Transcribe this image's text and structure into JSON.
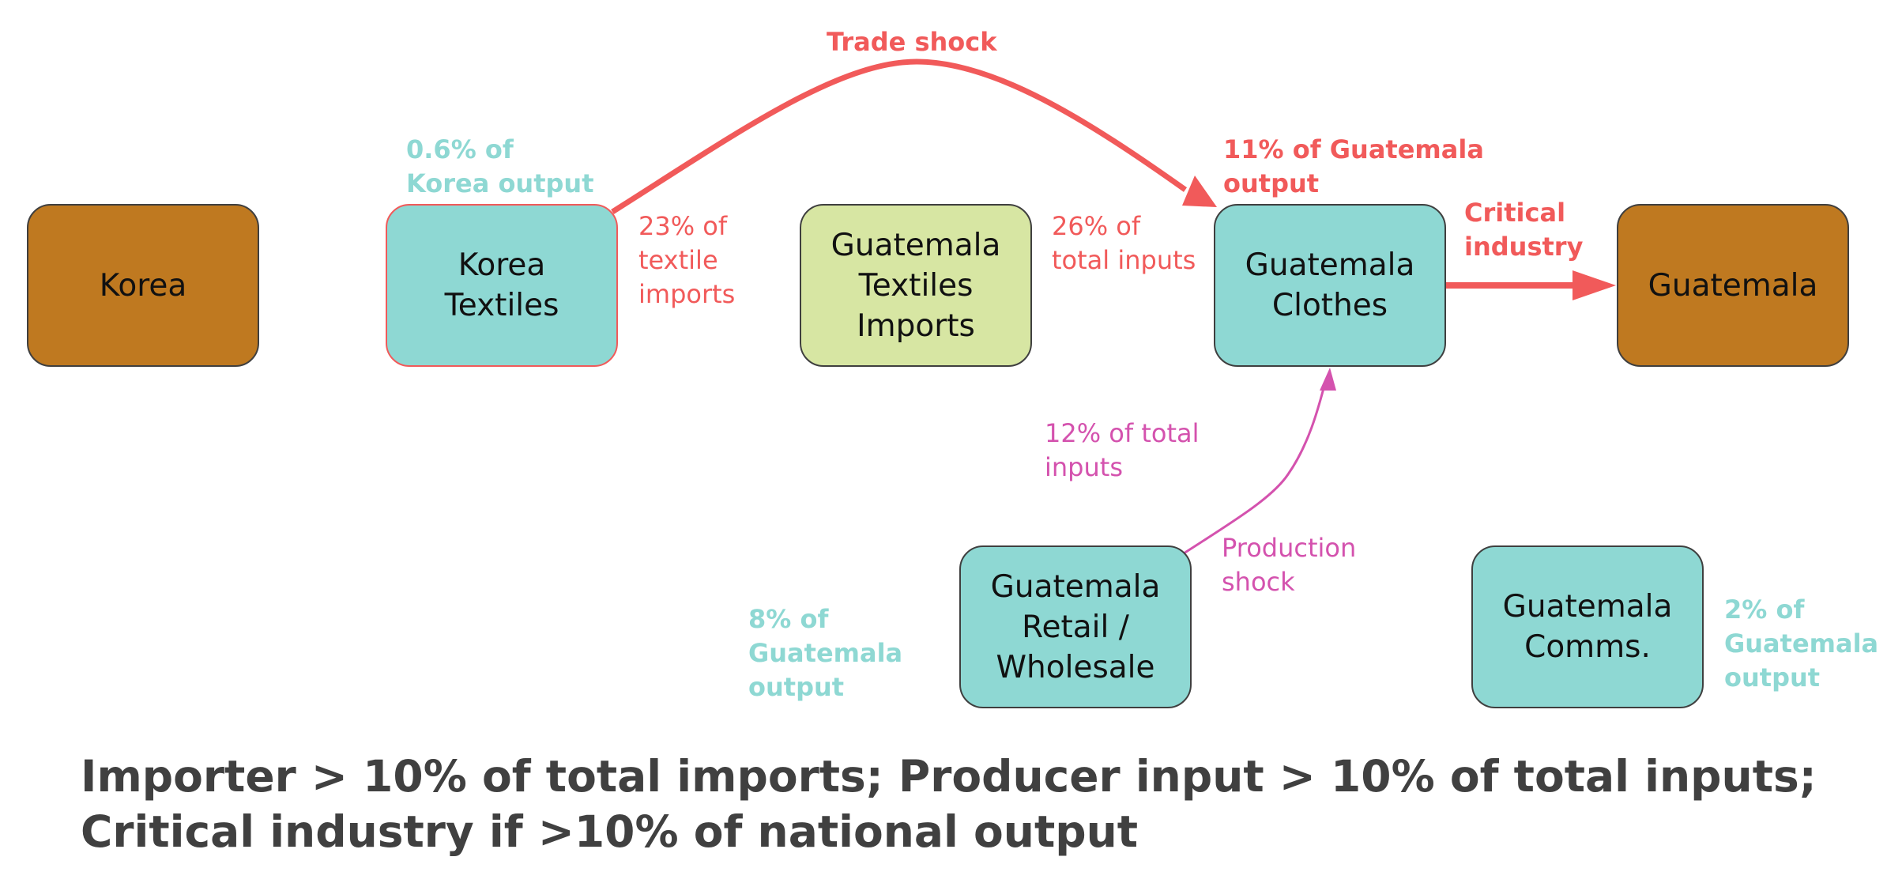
{
  "colors": {
    "country_fill": "#bf7920",
    "sector_fill": "#8ed8d3",
    "imports_fill": "#d7e6a3",
    "node_border": "#3f3f3f",
    "trade_shock": "#f15a5a",
    "production_shock": "#d452ae",
    "share_label": "#8ed8d3",
    "footer_text": "#404040"
  },
  "nodes": {
    "korea": "Korea",
    "korea_textiles": "Korea\nTextiles",
    "guatemala_textiles_imports": "Guatemala\nTextiles\nImports",
    "guatemala_clothes": "Guatemala\nClothes",
    "guatemala": "Guatemala",
    "guatemala_retail_wholesale": "Guatemala\nRetail /\nWholesale",
    "guatemala_comms": "Guatemala\nComms."
  },
  "labels": {
    "korea_textiles_share": "0.6% of\nKorea output",
    "textile_imports_share": "23% of\ntextile\nimports",
    "trade_shock": "Trade shock",
    "total_inputs_share": "26% of\ntotal inputs",
    "clothes_share": "11% of Guatemala\noutput",
    "critical_industry": "Critical\nindustry",
    "retail_inputs_share": "12% of total\ninputs",
    "production_shock": "Production\nshock",
    "retail_share": "8% of\nGuatemala\noutput",
    "comms_share": "2% of\nGuatemala\noutput"
  },
  "footer": {
    "line1": "Importer > 10% of total imports; Producer input > 10% of total inputs;",
    "line2": "Critical industry if >10% of national output"
  }
}
